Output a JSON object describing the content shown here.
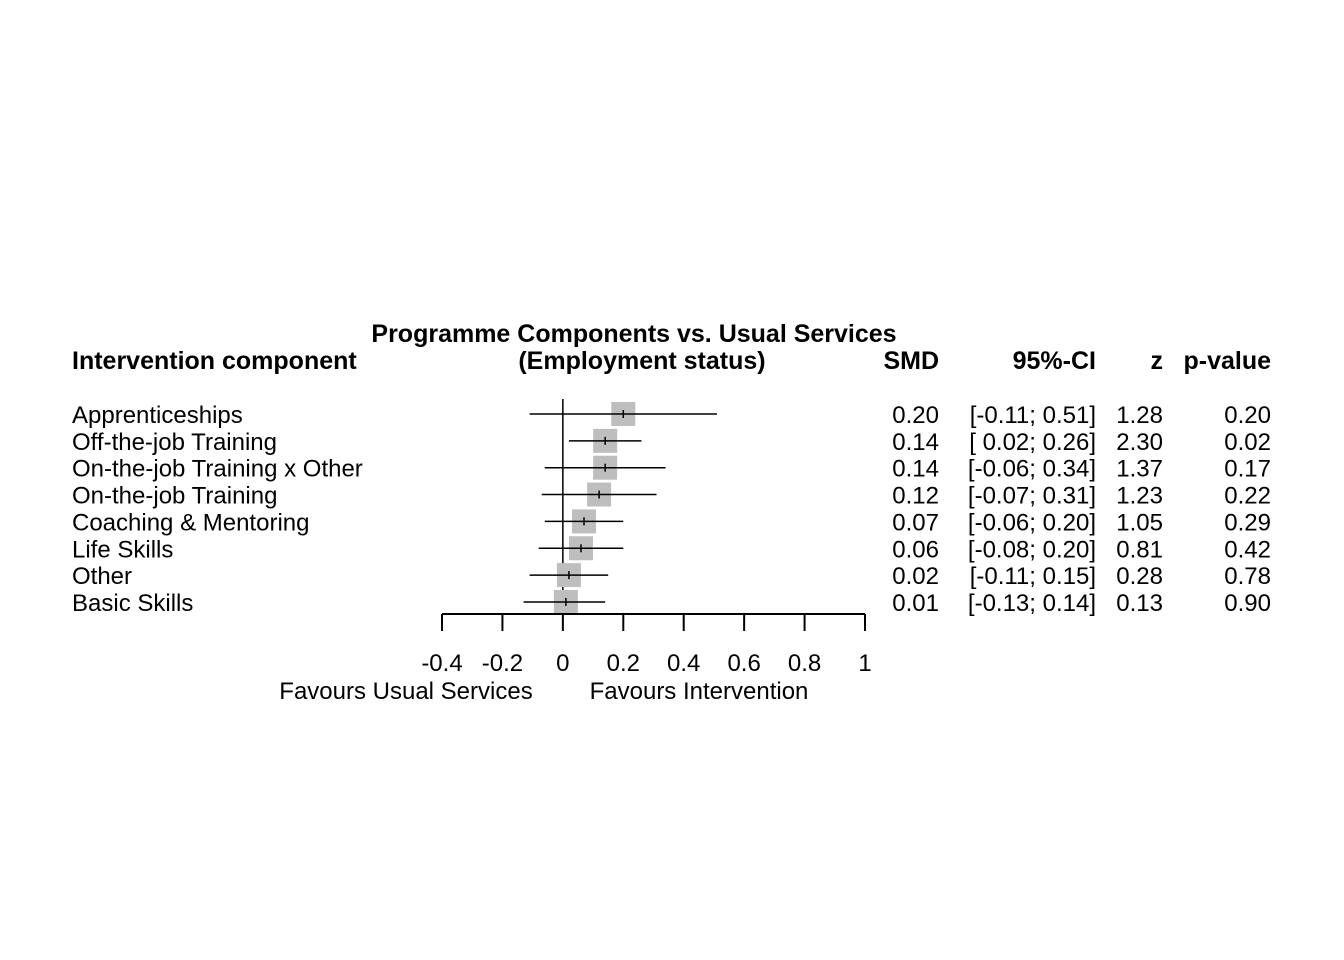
{
  "chart_data": {
    "type": "forest",
    "title_line1": "Programme Components vs. Usual Services",
    "title_line2": "(Employment status)",
    "headers": {
      "component": "Intervention component",
      "smd": "SMD",
      "ci": "95%-CI",
      "z": "z",
      "p": "p-value"
    },
    "rows": [
      {
        "label": "Apprenticeships",
        "smd": 0.2,
        "lo": -0.11,
        "hi": 0.51,
        "smd_txt": "0.20",
        "ci_txt": "[-0.11; 0.51]",
        "z_txt": "1.28",
        "p_txt": "0.20"
      },
      {
        "label": "Off-the-job Training",
        "smd": 0.14,
        "lo": 0.02,
        "hi": 0.26,
        "smd_txt": "0.14",
        "ci_txt": "[ 0.02; 0.26]",
        "z_txt": "2.30",
        "p_txt": "0.02"
      },
      {
        "label": "On-the-job Training x Other",
        "smd": 0.14,
        "lo": -0.06,
        "hi": 0.34,
        "smd_txt": "0.14",
        "ci_txt": "[-0.06; 0.34]",
        "z_txt": "1.37",
        "p_txt": "0.17"
      },
      {
        "label": "On-the-job Training",
        "smd": 0.12,
        "lo": -0.07,
        "hi": 0.31,
        "smd_txt": "0.12",
        "ci_txt": "[-0.07; 0.31]",
        "z_txt": "1.23",
        "p_txt": "0.22"
      },
      {
        "label": "Coaching & Mentoring",
        "smd": 0.07,
        "lo": -0.06,
        "hi": 0.2,
        "smd_txt": "0.07",
        "ci_txt": "[-0.06; 0.20]",
        "z_txt": "1.05",
        "p_txt": "0.29"
      },
      {
        "label": "Life Skills",
        "smd": 0.06,
        "lo": -0.08,
        "hi": 0.2,
        "smd_txt": "0.06",
        "ci_txt": "[-0.08; 0.20]",
        "z_txt": "0.81",
        "p_txt": "0.42"
      },
      {
        "label": "Other",
        "smd": 0.02,
        "lo": -0.11,
        "hi": 0.15,
        "smd_txt": "0.02",
        "ci_txt": "[-0.11; 0.15]",
        "z_txt": "0.28",
        "p_txt": "0.78"
      },
      {
        "label": "Basic Skills",
        "smd": 0.01,
        "lo": -0.13,
        "hi": 0.14,
        "smd_txt": "0.01",
        "ci_txt": "[-0.13; 0.14]",
        "z_txt": "0.13",
        "p_txt": "0.90"
      }
    ],
    "xaxis": {
      "ticks": [
        -0.4,
        -0.2,
        0,
        0.2,
        0.4,
        0.6,
        0.8,
        1
      ],
      "tick_labels": [
        "-0.4",
        "-0.2",
        "0",
        "0.2",
        "0.4",
        "0.6",
        "0.8",
        "1"
      ],
      "xlim": [
        -0.4,
        1.0
      ],
      "null_value": 0
    },
    "favour_left": "Favours Usual Services",
    "favour_right": "Favours Intervention",
    "colors": {
      "square": "#bebebe",
      "line": "#000000"
    }
  }
}
